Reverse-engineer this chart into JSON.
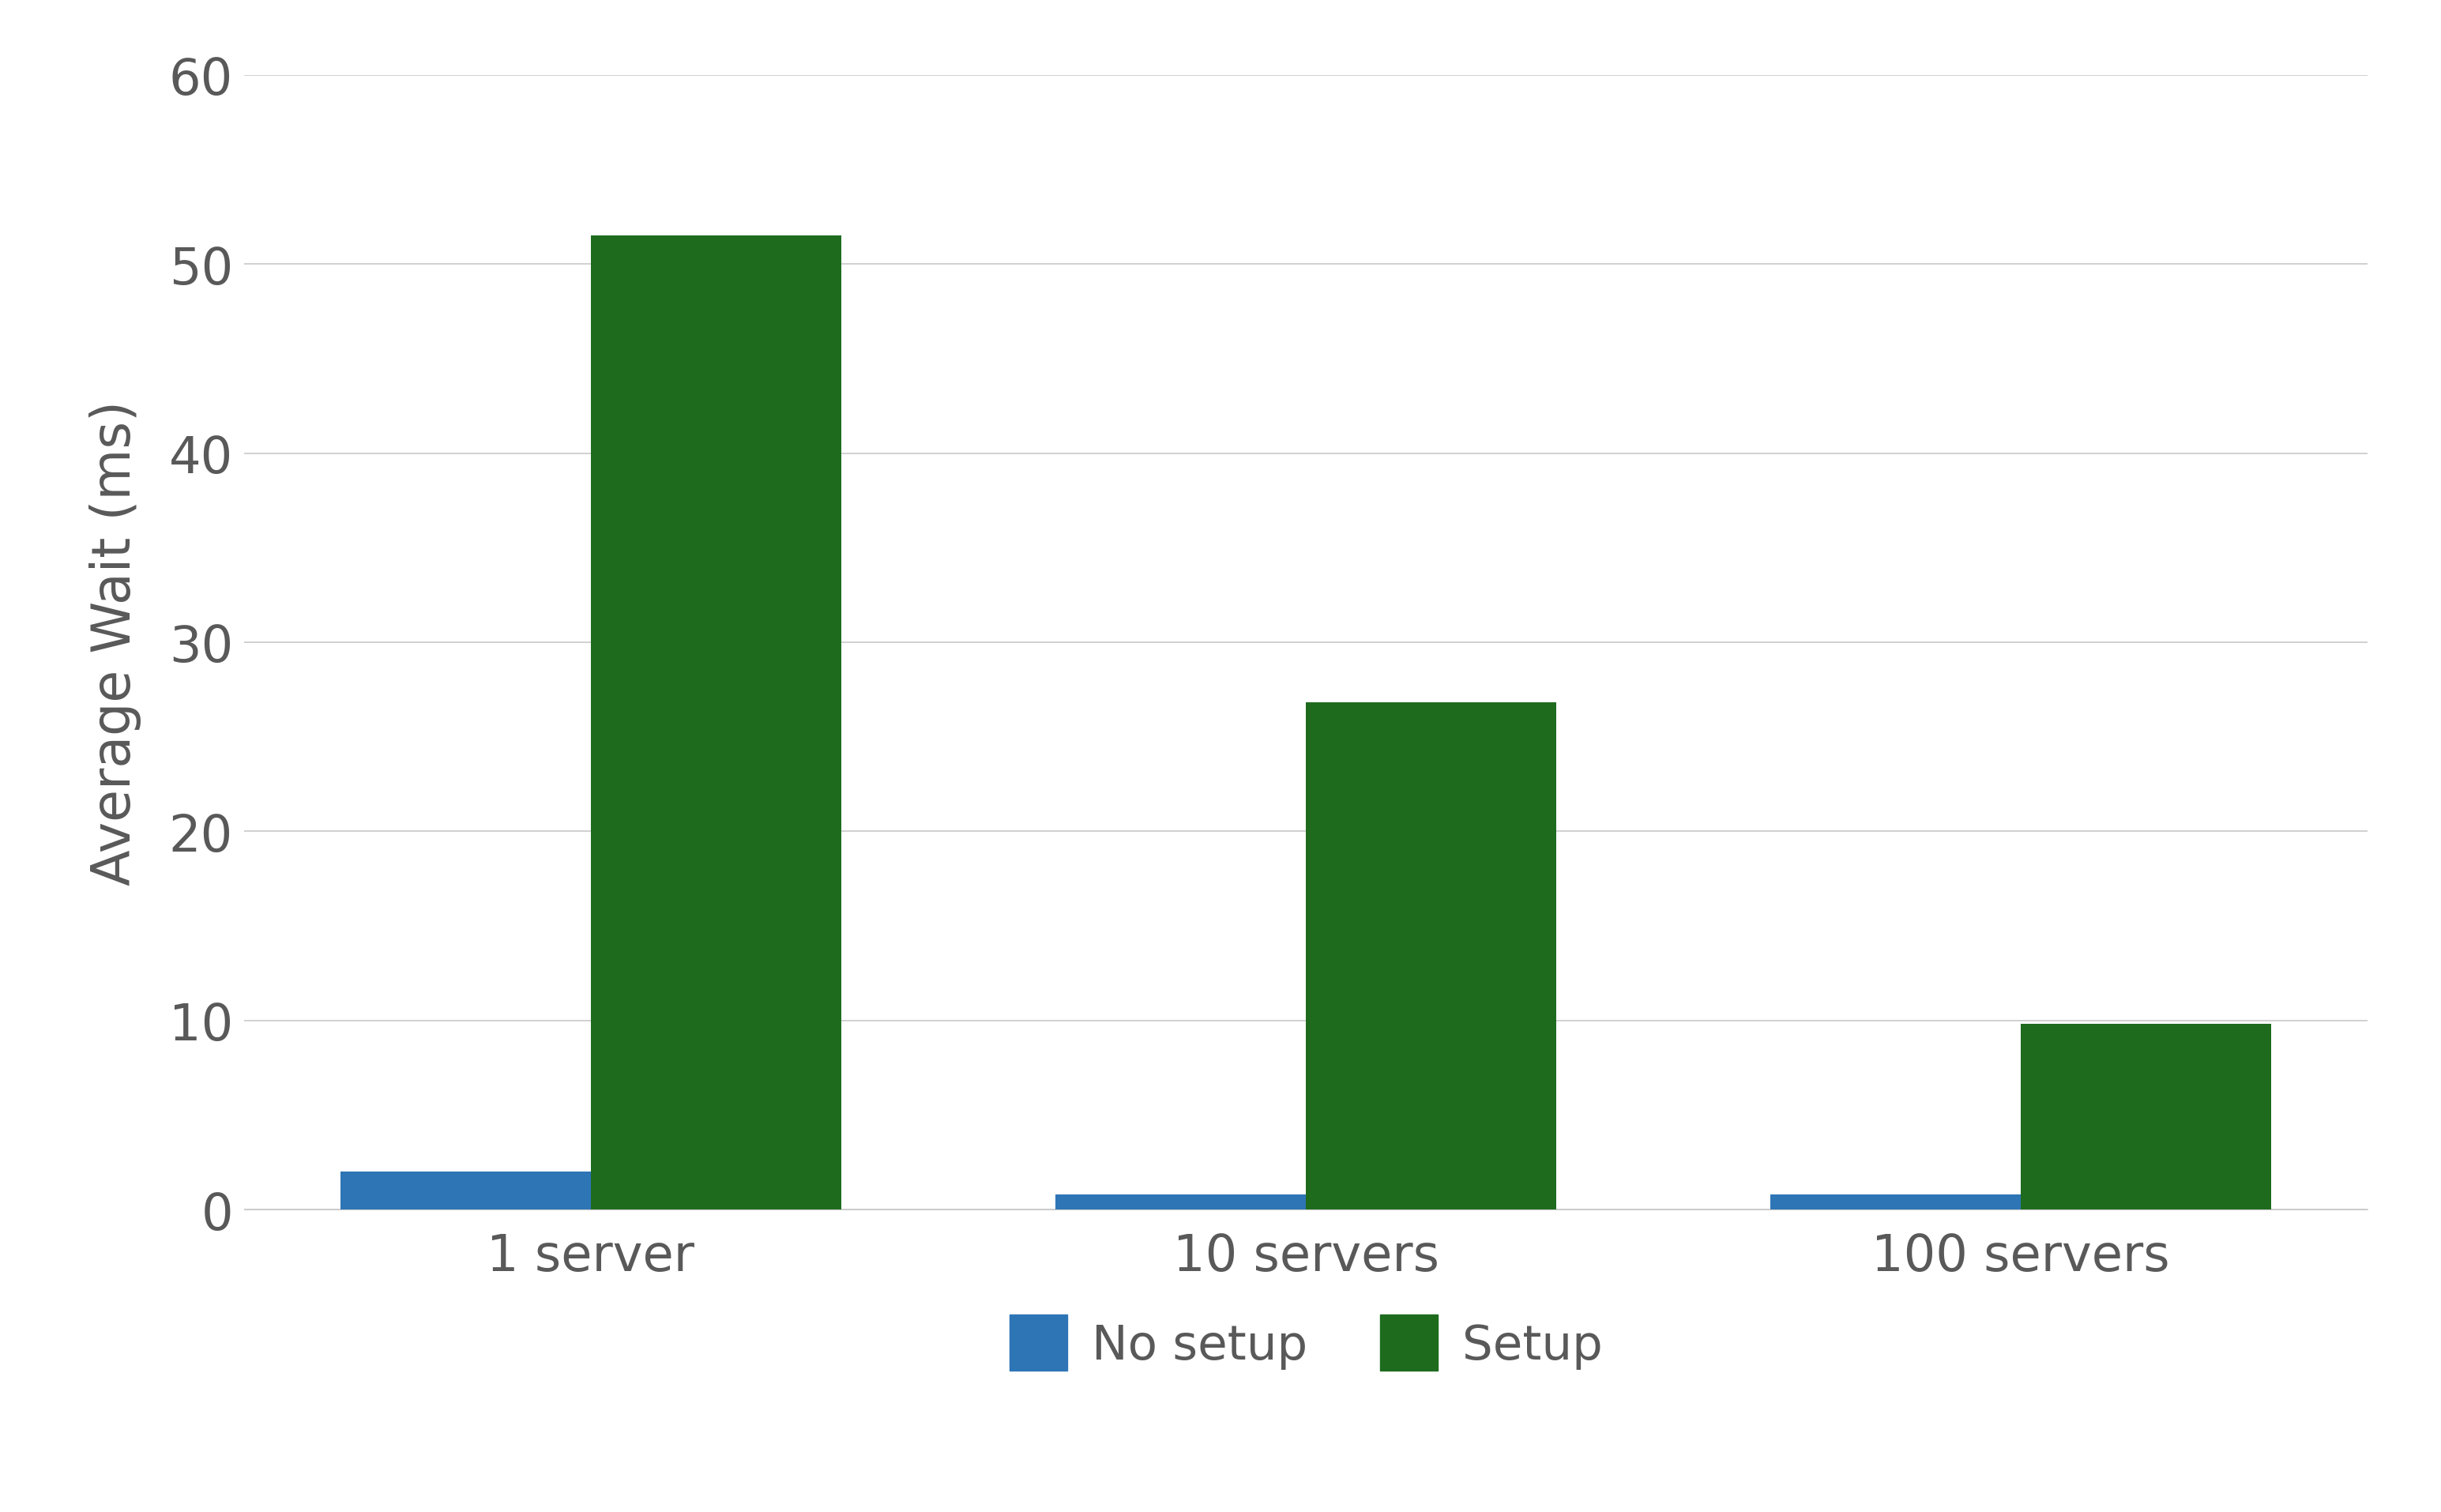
{
  "categories": [
    "1 server",
    "10 servers",
    "100 servers"
  ],
  "no_setup_values": [
    2.0,
    0.8,
    0.8
  ],
  "setup_values": [
    51.5,
    26.8,
    9.8
  ],
  "no_setup_color": "#2E75B6",
  "setup_color": "#1E6B1E",
  "ylabel": "Average Wait (ms)",
  "ylim": [
    0,
    60
  ],
  "yticks": [
    0,
    10,
    20,
    30,
    40,
    50,
    60
  ],
  "legend_labels": [
    "No setup",
    "Setup"
  ],
  "bar_width": 0.35,
  "background_color": "#FFFFFF",
  "grid_color": "#C8C8C8",
  "tick_label_color": "#595959",
  "ylabel_color": "#595959",
  "legend_label_color": "#595959",
  "tick_fontsize": 46,
  "ylabel_fontsize": 48,
  "legend_fontsize": 44,
  "category_fontsize": 46
}
